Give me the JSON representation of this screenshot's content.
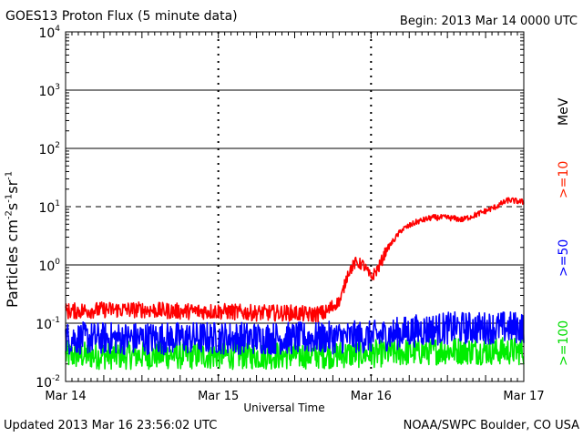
{
  "title": "GOES13 Proton Flux (5 minute data)",
  "begin": "Begin: 2013 Mar 14 0000 UTC",
  "footer": {
    "updated": "Updated 2013 Mar 16 23:56:02 UTC",
    "credit": "NOAA/SWPC Boulder, CO USA"
  },
  "legend_labels": {
    "p10": ">=10",
    "mev": "MeV",
    "p50": ">=50",
    "p100": ">=100"
  },
  "chart_data": {
    "type": "line",
    "title": "GOES13 Proton Flux (5 minute data)",
    "xlabel": "Universal Time",
    "ylabel": "Particles cm-2s-1sr-1",
    "yscale": "log",
    "ylim": [
      0.01,
      10000
    ],
    "xlim": [
      0,
      3
    ],
    "x_tick_labels": [
      "Mar 14",
      "Mar 15",
      "Mar 16",
      "Mar 17"
    ],
    "y_tick_labels": [
      {
        "base": "10",
        "exp": "-2"
      },
      {
        "base": "10",
        "exp": "-1"
      },
      {
        "base": "10",
        "exp": "0"
      },
      {
        "base": "10",
        "exp": "1"
      },
      {
        "base": "10",
        "exp": "2"
      },
      {
        "base": "10",
        "exp": "3"
      },
      {
        "base": "10",
        "exp": "4"
      }
    ],
    "grid": "solid horizontal at decades, dashed at 10 (alert threshold)",
    "series": [
      {
        "name": ">=10 MeV",
        "color": "#ff0000",
        "x": [
          0,
          0.25,
          0.5,
          0.75,
          1.0,
          1.25,
          1.5,
          1.6,
          1.7,
          1.8,
          1.85,
          1.9,
          1.95,
          2.0,
          2.05,
          2.1,
          2.2,
          2.3,
          2.4,
          2.5,
          2.6,
          2.7,
          2.8,
          2.9,
          3.0
        ],
        "y": [
          0.16,
          0.17,
          0.17,
          0.16,
          0.16,
          0.15,
          0.15,
          0.14,
          0.15,
          0.25,
          0.75,
          1.1,
          1.0,
          0.6,
          0.9,
          1.8,
          4.0,
          5.5,
          6.5,
          6.5,
          6.0,
          7.5,
          9.5,
          13,
          12
        ]
      },
      {
        "name": ">=50 MeV",
        "color": "#0000ff",
        "x": [
          0,
          0.5,
          1.0,
          1.5,
          1.9,
          2.0,
          2.3,
          2.5,
          3.0
        ],
        "y": [
          0.055,
          0.055,
          0.056,
          0.055,
          0.058,
          0.058,
          0.075,
          0.082,
          0.085
        ]
      },
      {
        "name": ">=100 MeV",
        "color": "#00ee00",
        "x": [
          0,
          0.5,
          1.0,
          1.5,
          2.0,
          2.5,
          3.0
        ],
        "y": [
          0.028,
          0.028,
          0.028,
          0.028,
          0.03,
          0.034,
          0.033
        ]
      }
    ]
  }
}
